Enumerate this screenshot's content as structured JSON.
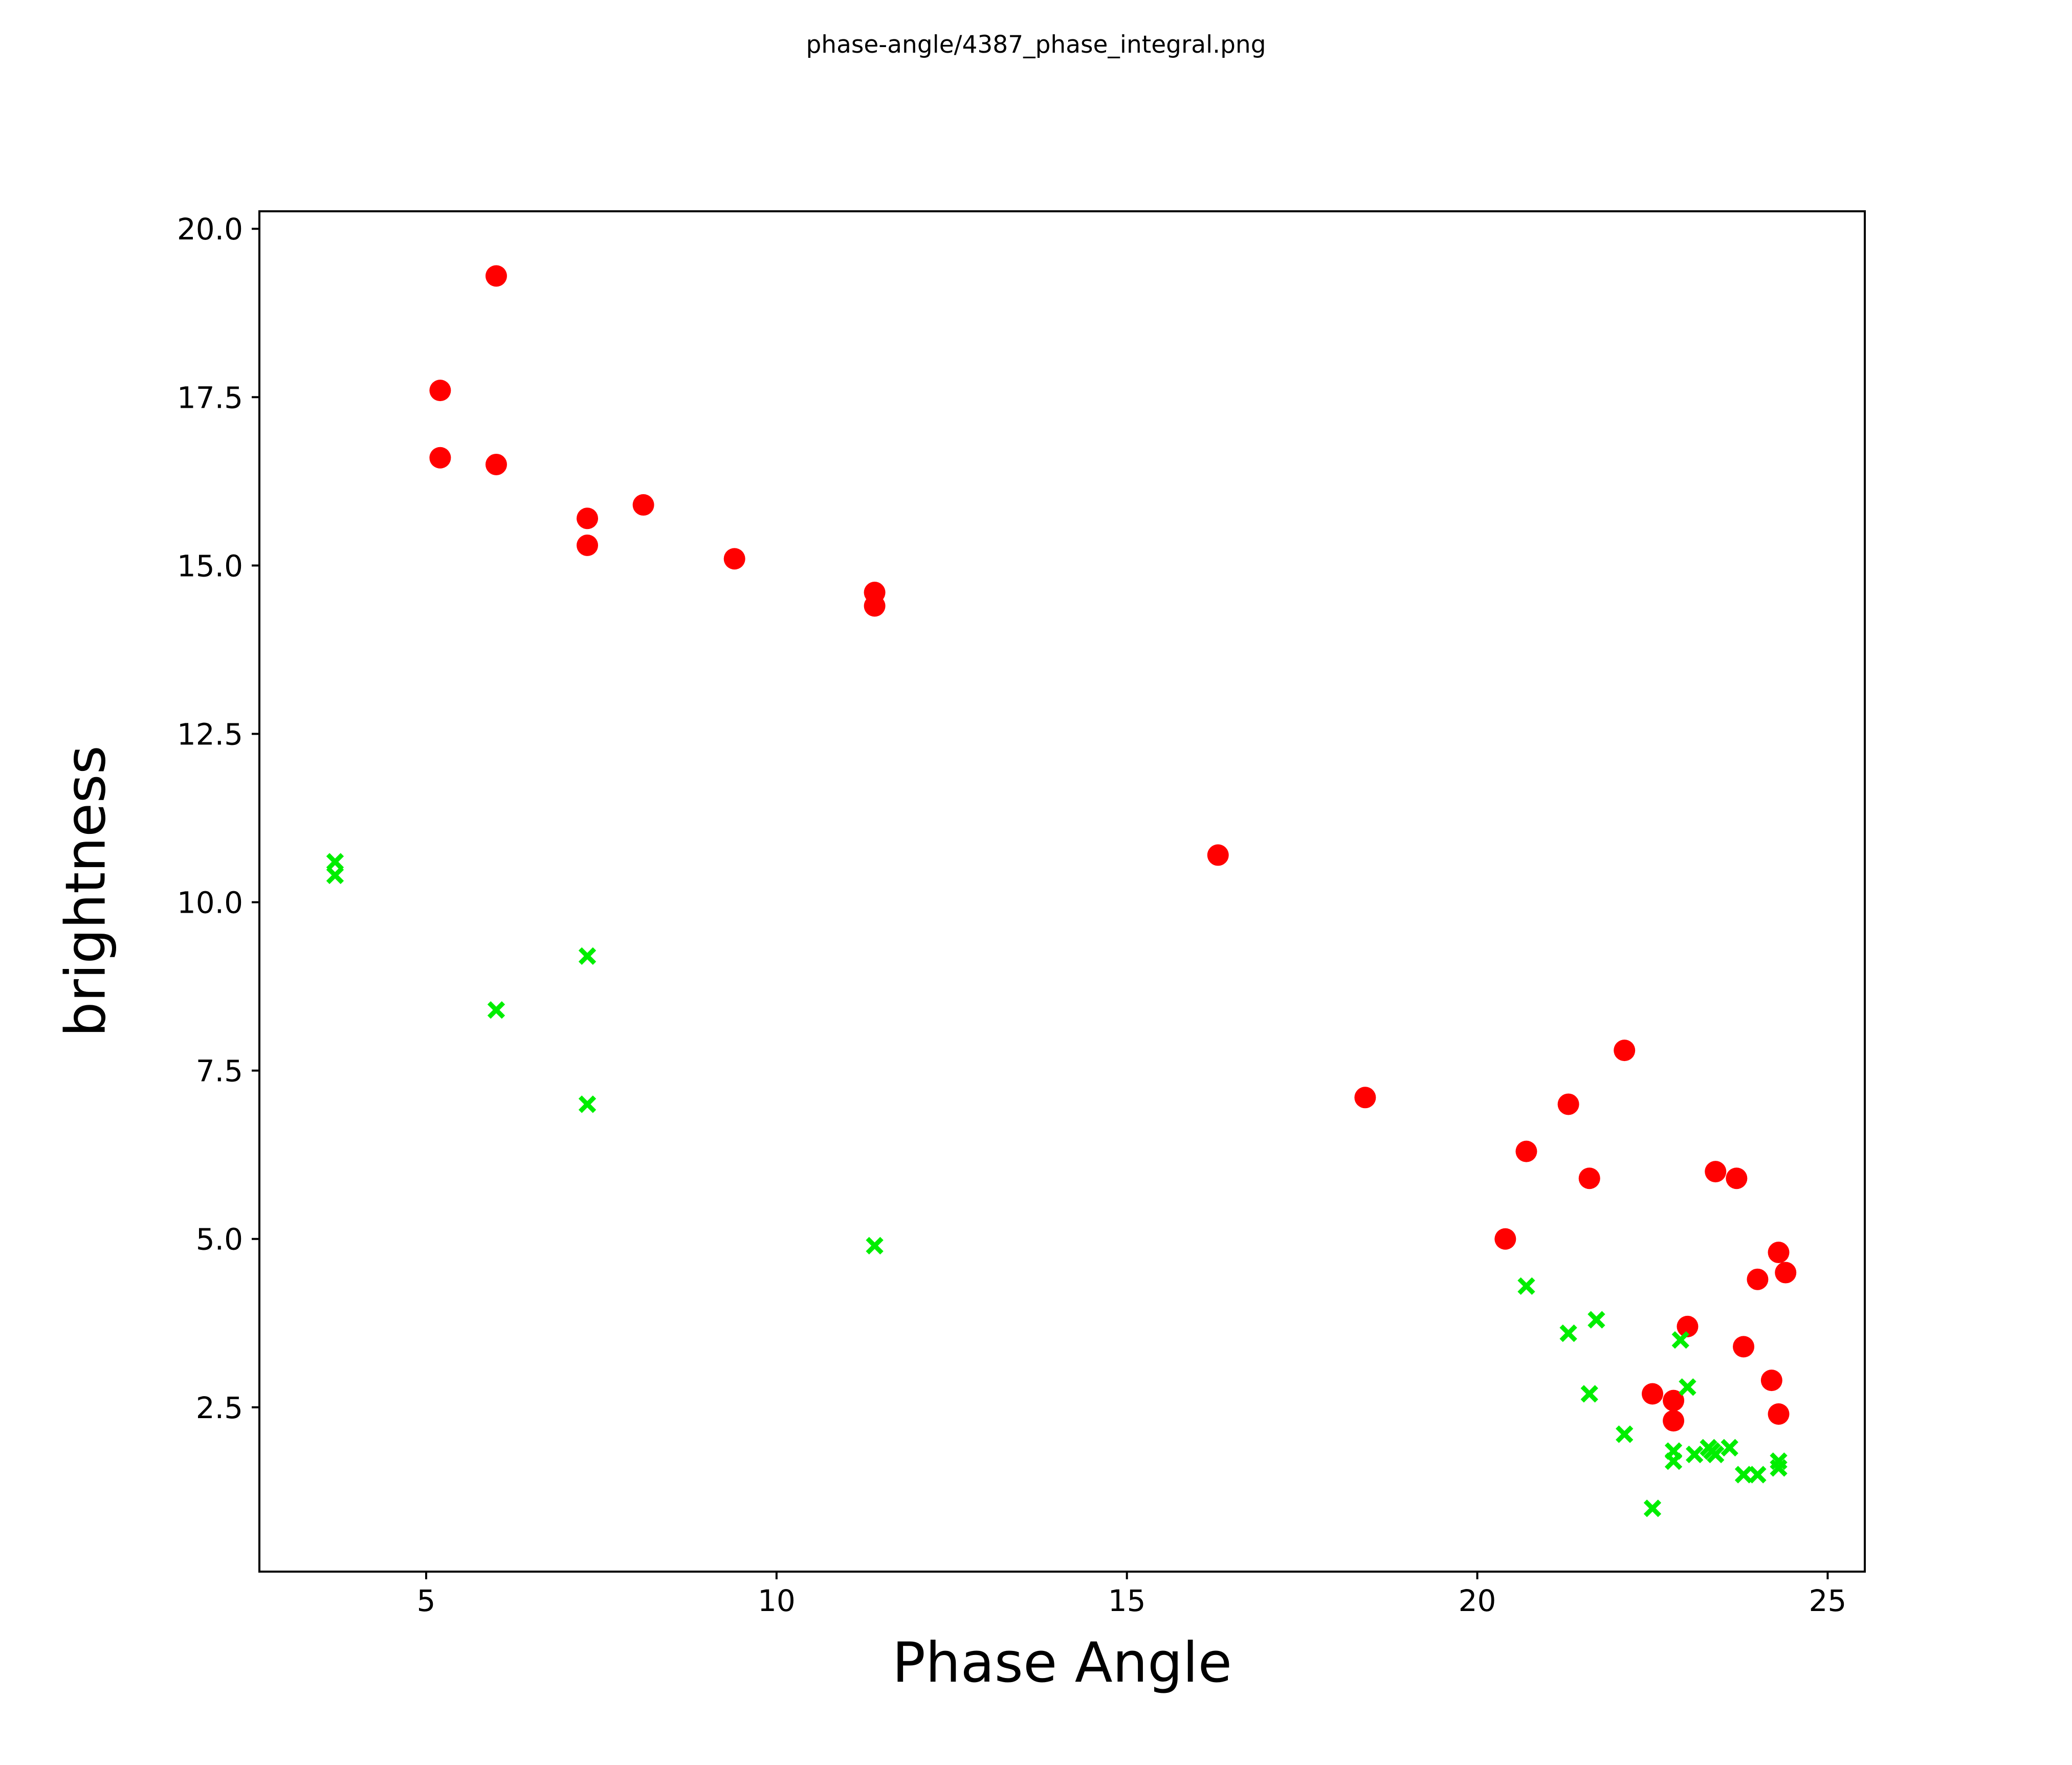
{
  "chart_data": {
    "type": "scatter",
    "title": "phase-angle/4387_phase_integral.png",
    "xlabel": "Phase Angle",
    "ylabel": "brightness",
    "xlim": [
      2.62,
      25.53
    ],
    "ylim": [
      0.06,
      20.26
    ],
    "grid": false,
    "legend": null,
    "x_ticks": [
      {
        "value": 5,
        "label": "5"
      },
      {
        "value": 10,
        "label": "10"
      },
      {
        "value": 15,
        "label": "15"
      },
      {
        "value": 20,
        "label": "20"
      },
      {
        "value": 25,
        "label": "25"
      }
    ],
    "y_ticks": [
      {
        "value": 2.5,
        "label": "2.5"
      },
      {
        "value": 5.0,
        "label": "5.0"
      },
      {
        "value": 7.5,
        "label": "7.5"
      },
      {
        "value": 10.0,
        "label": "10.0"
      },
      {
        "value": 12.5,
        "label": "12.5"
      },
      {
        "value": 15.0,
        "label": "15.0"
      },
      {
        "value": 17.5,
        "label": "17.5"
      },
      {
        "value": 20.0,
        "label": "20.0"
      }
    ],
    "series": [
      {
        "name": "red-circles",
        "marker": "circle",
        "color": "#ff0000",
        "points": [
          [
            6.0,
            19.3
          ],
          [
            5.2,
            17.6
          ],
          [
            5.2,
            16.6
          ],
          [
            6.0,
            16.5
          ],
          [
            7.3,
            15.7
          ],
          [
            8.1,
            15.9
          ],
          [
            7.3,
            15.3
          ],
          [
            9.4,
            15.1
          ],
          [
            11.4,
            14.6
          ],
          [
            11.4,
            14.4
          ],
          [
            16.3,
            10.7
          ],
          [
            18.4,
            7.1
          ],
          [
            22.1,
            7.8
          ],
          [
            21.3,
            7.0
          ],
          [
            20.7,
            6.3
          ],
          [
            21.6,
            5.9
          ],
          [
            20.4,
            5.0
          ],
          [
            23.4,
            6.0
          ],
          [
            23.7,
            5.9
          ],
          [
            24.3,
            4.8
          ],
          [
            24.4,
            4.5
          ],
          [
            24.0,
            4.4
          ],
          [
            23.0,
            3.7
          ],
          [
            23.8,
            3.4
          ],
          [
            24.2,
            2.9
          ],
          [
            24.3,
            2.4
          ],
          [
            22.5,
            2.7
          ],
          [
            22.8,
            2.6
          ],
          [
            22.8,
            2.3
          ]
        ]
      },
      {
        "name": "green-crosses",
        "marker": "x",
        "color": "#00ee00",
        "points": [
          [
            3.7,
            10.6
          ],
          [
            3.7,
            10.4
          ],
          [
            6.0,
            8.4
          ],
          [
            7.3,
            9.2
          ],
          [
            7.3,
            7.0
          ],
          [
            11.4,
            4.9
          ],
          [
            20.7,
            4.3
          ],
          [
            21.3,
            3.6
          ],
          [
            21.7,
            3.8
          ],
          [
            22.9,
            3.5
          ],
          [
            21.6,
            2.7
          ],
          [
            23.0,
            2.8
          ],
          [
            22.1,
            2.1
          ],
          [
            22.5,
            1.0
          ],
          [
            22.8,
            1.85
          ],
          [
            22.8,
            1.7
          ],
          [
            23.1,
            1.8
          ],
          [
            23.3,
            1.9
          ],
          [
            23.35,
            1.85
          ],
          [
            23.4,
            1.8
          ],
          [
            23.6,
            1.9
          ],
          [
            23.8,
            1.5
          ],
          [
            24.0,
            1.5
          ],
          [
            24.3,
            1.7
          ],
          [
            24.3,
            1.6
          ]
        ]
      }
    ]
  }
}
